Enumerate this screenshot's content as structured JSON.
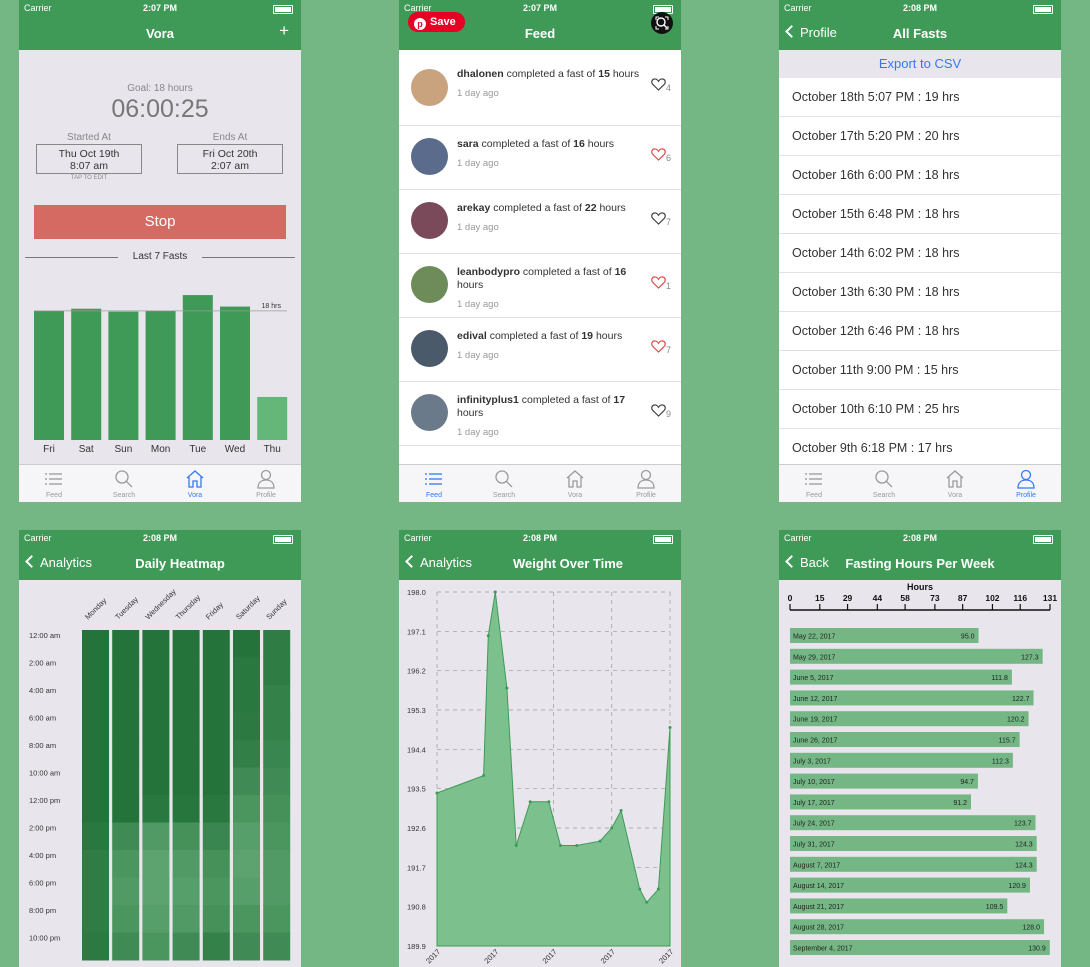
{
  "screens": {
    "vora": {
      "status": {
        "carrier": "Carrier",
        "time": "2:07 PM"
      },
      "title": "Vora",
      "plus": "+",
      "goal": "Goal: 18 hours",
      "timer": "06:00:25",
      "started_label": "Started At",
      "started_date": "Thu Oct 19th",
      "started_time": "8:07 am",
      "ends_label": "Ends At",
      "ends_date": "Fri Oct 20th",
      "ends_time": "2:07 am",
      "tap_to_edit": "TAP TO EDIT",
      "stop": "Stop",
      "last7": "Last 7 Fasts",
      "goal_line": "18 hrs"
    },
    "feed": {
      "status": {
        "carrier": "Carrier",
        "time": "2:07 PM"
      },
      "title": "Feed",
      "save": "Save",
      "items": [
        {
          "user": "dhalonen",
          "pre": " completed a fast of ",
          "hours": "15",
          "post": " hours",
          "time": "1 day ago",
          "likes": "4",
          "liked": false
        },
        {
          "user": "sara",
          "pre": " completed a fast of ",
          "hours": "16",
          "post": " hours",
          "time": "1 day ago",
          "likes": "6",
          "liked": true
        },
        {
          "user": "arekay",
          "pre": " completed a fast of ",
          "hours": "22",
          "post": " hours",
          "time": "1 day ago",
          "likes": "7",
          "liked": false
        },
        {
          "user": "leanbodypro",
          "pre": " completed a fast of ",
          "hours": "16",
          "post": " hours",
          "time": "1 day ago",
          "likes": "1",
          "liked": true
        },
        {
          "user": "edival",
          "pre": " completed a fast of ",
          "hours": "19",
          "post": " hours",
          "time": "1 day ago",
          "likes": "7",
          "liked": true
        },
        {
          "user": "infinityplus1",
          "pre": " completed a fast of ",
          "hours": "17",
          "post": " hours",
          "time": "1 day ago",
          "likes": "9",
          "liked": false
        }
      ]
    },
    "allfasts": {
      "status": {
        "carrier": "Carrier",
        "time": "2:08 PM"
      },
      "back": "Profile",
      "title": "All Fasts",
      "export": "Export to CSV",
      "rows": [
        "October 18th 5:07 PM : 19 hrs",
        "October 17th 5:20 PM : 20 hrs",
        "October 16th 6:00 PM : 18 hrs",
        "October 15th 6:48 PM : 18 hrs",
        "October 14th 6:02 PM : 18 hrs",
        "October 13th 6:30 PM : 18 hrs",
        "October 12th 6:46 PM : 18 hrs",
        "October 11th 9:00 PM : 15 hrs",
        "October 10th 6:10 PM : 25 hrs",
        "October 9th 6:18 PM : 17 hrs"
      ]
    },
    "heatmap": {
      "status": {
        "carrier": "Carrier",
        "time": "2:08 PM"
      },
      "back": "Analytics",
      "title": "Daily Heatmap",
      "days": [
        "Monday",
        "Tuesday",
        "Wednesday",
        "Thursday",
        "Friday",
        "Saturday",
        "Sunday"
      ],
      "hours": [
        "12:00 am",
        "2:00 am",
        "4:00 am",
        "6:00 am",
        "8:00 am",
        "10:00 am",
        "12:00 pm",
        "2:00 pm",
        "4:00 pm",
        "6:00 pm",
        "8:00 pm",
        "10:00 pm"
      ]
    },
    "weight": {
      "status": {
        "carrier": "Carrier",
        "time": "2:08 PM"
      },
      "back": "Analytics",
      "title": "Weight Over Time",
      "x_labels": [
        "2017",
        "2017",
        "2017",
        "2017",
        "2017"
      ]
    },
    "hours": {
      "status": {
        "carrier": "Carrier",
        "time": "2:08 PM"
      },
      "back": "Back",
      "title": "Fasting Hours Per Week",
      "axis_title": "Hours"
    }
  },
  "tabs": [
    {
      "label": "Feed",
      "icon": "list-icon"
    },
    {
      "label": "Search",
      "icon": "search-icon"
    },
    {
      "label": "Vora",
      "icon": "home-icon"
    },
    {
      "label": "Profile",
      "icon": "profile-icon"
    }
  ],
  "colors": {
    "background": "#74b784",
    "nav": "#3f9a58",
    "stop": "#d46a62",
    "accent": "#3478f6",
    "like": "#e5484d"
  },
  "chart_data": [
    {
      "type": "bar",
      "title": "Last 7 Fasts",
      "categories": [
        "Fri",
        "Sat",
        "Sun",
        "Mon",
        "Tue",
        "Wed",
        "Thu"
      ],
      "values": [
        18.0,
        18.3,
        17.9,
        18.0,
        20.2,
        18.6,
        6.0
      ],
      "goal": 18,
      "ylim": [
        0,
        23
      ]
    },
    {
      "type": "heatmap",
      "title": "Daily Heatmap",
      "x": [
        "Monday",
        "Tuesday",
        "Wednesday",
        "Thursday",
        "Friday",
        "Saturday",
        "Sunday"
      ],
      "y": [
        "12:00 am",
        "2:00 am",
        "4:00 am",
        "6:00 am",
        "8:00 am",
        "10:00 am",
        "12:00 pm",
        "2:00 pm",
        "4:00 pm",
        "6:00 pm",
        "8:00 pm",
        "10:00 pm"
      ],
      "values": [
        [
          0.95,
          0.95,
          0.95,
          0.95,
          0.95,
          0.95,
          0.85
        ],
        [
          0.95,
          0.95,
          0.95,
          0.95,
          0.95,
          0.9,
          0.85
        ],
        [
          0.95,
          0.95,
          0.95,
          0.95,
          0.95,
          0.9,
          0.8
        ],
        [
          0.95,
          0.95,
          0.95,
          0.95,
          0.95,
          0.88,
          0.8
        ],
        [
          0.95,
          0.95,
          0.95,
          0.95,
          0.95,
          0.82,
          0.75
        ],
        [
          0.95,
          0.95,
          0.95,
          0.95,
          0.95,
          0.7,
          0.7
        ],
        [
          0.95,
          0.95,
          0.9,
          0.92,
          0.9,
          0.6,
          0.65
        ],
        [
          0.9,
          0.7,
          0.55,
          0.65,
          0.75,
          0.5,
          0.6
        ],
        [
          0.85,
          0.6,
          0.45,
          0.55,
          0.65,
          0.45,
          0.55
        ],
        [
          0.85,
          0.55,
          0.45,
          0.5,
          0.6,
          0.5,
          0.55
        ],
        [
          0.85,
          0.6,
          0.5,
          0.55,
          0.65,
          0.6,
          0.6
        ],
        [
          0.88,
          0.7,
          0.6,
          0.7,
          0.8,
          0.7,
          0.7
        ]
      ]
    },
    {
      "type": "area",
      "title": "Weight Over Time",
      "yticks": [
        "198.0",
        "197.1",
        "196.2",
        "195.3",
        "194.4",
        "193.5",
        "192.6",
        "191.7",
        "190.8",
        "189.9"
      ],
      "ylim": [
        189.9,
        198.0
      ],
      "x": [
        0.0,
        0.2,
        0.22,
        0.25,
        0.3,
        0.34,
        0.4,
        0.48,
        0.53,
        0.6,
        0.7,
        0.75,
        0.79,
        0.87,
        0.9,
        0.95,
        1.0
      ],
      "y": [
        193.4,
        193.8,
        197.0,
        198.0,
        195.8,
        192.2,
        193.2,
        193.2,
        192.2,
        192.2,
        192.3,
        192.6,
        193.0,
        191.2,
        190.9,
        191.2,
        194.9
      ]
    },
    {
      "type": "bar",
      "orientation": "horizontal",
      "title": "Fasting Hours Per Week",
      "xlabel": "Hours",
      "xticks": [
        0,
        15,
        29,
        44,
        58,
        73,
        87,
        102,
        116,
        131
      ],
      "xlim": [
        0,
        131
      ],
      "categories": [
        "May 22, 2017",
        "May 29, 2017",
        "June 5, 2017",
        "June 12, 2017",
        "June 19, 2017",
        "June 26, 2017",
        "July 3, 2017",
        "July 10, 2017",
        "July 17, 2017",
        "July 24, 2017",
        "July 31, 2017",
        "August 7, 2017",
        "August 14, 2017",
        "August 21, 2017",
        "August 28, 2017",
        "September 4, 2017"
      ],
      "values": [
        95.0,
        127.3,
        111.8,
        122.7,
        120.2,
        115.7,
        112.3,
        94.7,
        91.2,
        123.7,
        124.3,
        124.3,
        120.9,
        109.5,
        128.0,
        130.9
      ]
    }
  ]
}
